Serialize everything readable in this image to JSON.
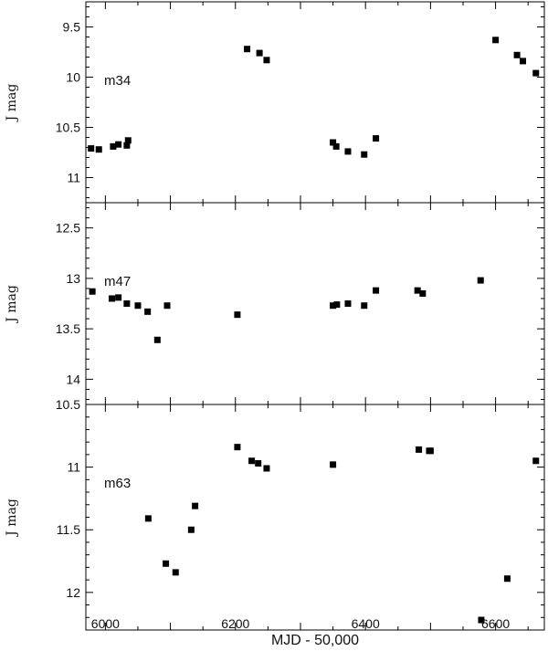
{
  "chart_data": [
    {
      "type": "scatter",
      "panel_label": "m34",
      "ylabel": "J mag",
      "ylim": [
        11.25,
        9.25
      ],
      "yticks": [
        "9.5",
        "10",
        "10.5",
        "11"
      ],
      "ytick_values": [
        9.5,
        10,
        10.5,
        11
      ],
      "x": [
        5978,
        5990,
        6012,
        6020,
        6033,
        6035,
        6218,
        6237,
        6248,
        6350,
        6355,
        6373,
        6398,
        6416,
        6600,
        6633,
        6642,
        6662
      ],
      "y": [
        10.71,
        10.72,
        10.69,
        10.67,
        10.68,
        10.63,
        9.72,
        9.76,
        9.83,
        10.65,
        10.69,
        10.74,
        10.77,
        10.61,
        9.63,
        9.78,
        9.84,
        9.96
      ]
    },
    {
      "type": "scatter",
      "panel_label": "m47",
      "ylabel": "J mag",
      "ylim": [
        14.25,
        12.25
      ],
      "yticks": [
        "12.5",
        "13",
        "13.5",
        "14"
      ],
      "ytick_values": [
        12.5,
        13,
        13.5,
        14
      ],
      "x": [
        5980,
        6010,
        6020,
        6033,
        6050,
        6065,
        6080,
        6095,
        6203,
        6350,
        6356,
        6373,
        6398,
        6416,
        6480,
        6488,
        6577
      ],
      "y": [
        13.13,
        13.2,
        13.19,
        13.25,
        13.27,
        13.33,
        13.61,
        13.27,
        13.36,
        13.27,
        13.26,
        13.25,
        13.27,
        13.12,
        13.12,
        13.15,
        13.02
      ]
    },
    {
      "type": "scatter",
      "panel_label": "m63",
      "ylabel": "J mag",
      "ylim": [
        12.3,
        10.5
      ],
      "yticks": [
        "10.5",
        "11",
        "11.5",
        "12"
      ],
      "ytick_values": [
        10.5,
        11,
        11.5,
        12
      ],
      "x": [
        6066,
        6093,
        6108,
        6132,
        6138,
        6203,
        6225,
        6235,
        6248,
        6350,
        6482,
        6498,
        6500,
        6578,
        6618,
        6662
      ],
      "y": [
        11.41,
        11.77,
        11.84,
        11.5,
        11.31,
        10.84,
        10.95,
        10.97,
        11.01,
        10.98,
        10.86,
        10.87,
        10.87,
        12.22,
        11.89,
        10.95
      ]
    }
  ],
  "xaxis": {
    "label": "MJD - 50,000",
    "xlim": [
      5970,
      6675
    ],
    "ticks": [
      "6000",
      "6200",
      "6400",
      "6600"
    ],
    "tick_values": [
      6000,
      6200,
      6400,
      6600
    ]
  }
}
